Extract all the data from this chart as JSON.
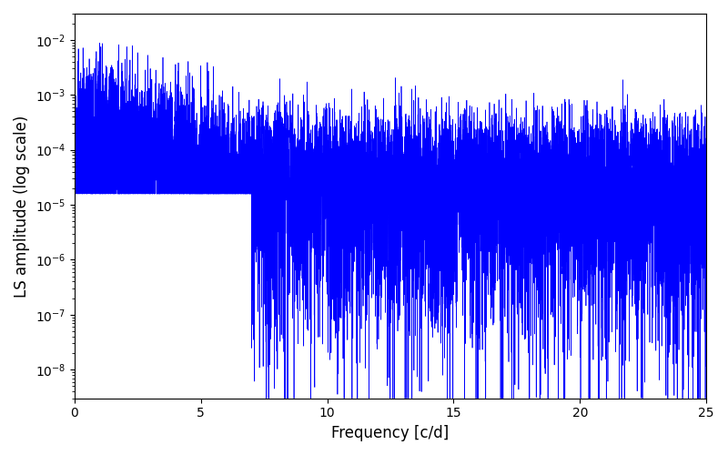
{
  "title": "",
  "xlabel": "Frequency [c/d]",
  "ylabel": "LS amplitude (log scale)",
  "xlim": [
    0,
    25
  ],
  "ylim": [
    3e-09,
    0.03
  ],
  "line_color": "#0000ff",
  "line_width": 0.5,
  "background_color": "#ffffff",
  "freq_max": 25.0,
  "n_points": 10000,
  "seed": 7
}
